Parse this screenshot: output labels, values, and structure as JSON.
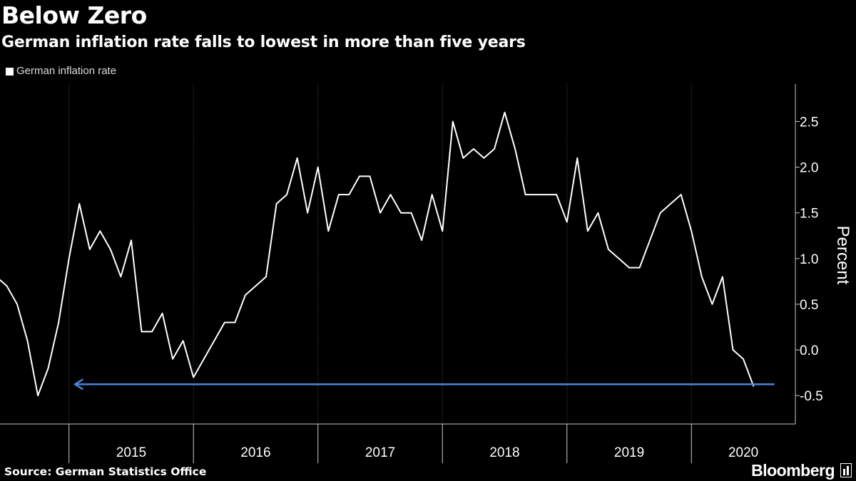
{
  "header": {
    "title": "Below Zero",
    "subtitle": "German inflation rate falls to lowest in more than five years"
  },
  "footer": {
    "source": "Source: German Statistics Office",
    "brand": "Bloomberg"
  },
  "colors": {
    "background": "#000000",
    "series": "#ffffff",
    "arrow": "#4a86d8",
    "grid": "#555555"
  },
  "chart_data": {
    "type": "line",
    "ylabel": "Percent",
    "ylim": [
      -0.8,
      2.85
    ],
    "yticks": [
      -0.5,
      0.0,
      0.5,
      1.0,
      1.5,
      2.0,
      2.5
    ],
    "ytick_labels": [
      "-0.5",
      "0.0",
      "0.5",
      "1.0",
      "1.5",
      "2.0",
      "2.5"
    ],
    "xlim": [
      "2014-06",
      "2020-12"
    ],
    "xticks": [
      "2015",
      "2016",
      "2017",
      "2018",
      "2019",
      "2020"
    ],
    "grid": "vertical dotted at year boundaries",
    "legend": "top-left",
    "series": [
      {
        "name": "German inflation rate",
        "color": "#ffffff",
        "start": "2014-06",
        "frequency": "monthly",
        "values": [
          0.8,
          0.7,
          0.5,
          0.1,
          -0.5,
          -0.2,
          0.3,
          1.0,
          1.6,
          1.1,
          1.3,
          1.1,
          0.8,
          1.2,
          0.2,
          0.2,
          0.4,
          -0.1,
          0.1,
          -0.3,
          -0.1,
          0.1,
          0.3,
          0.3,
          0.6,
          0.7,
          0.8,
          1.6,
          1.7,
          2.1,
          1.5,
          2.0,
          1.3,
          1.7,
          1.7,
          1.9,
          1.9,
          1.5,
          1.7,
          1.5,
          1.5,
          1.2,
          1.7,
          1.3,
          2.5,
          2.1,
          2.2,
          2.1,
          2.2,
          2.6,
          2.2,
          1.7,
          1.7,
          1.7,
          1.7,
          1.4,
          2.1,
          1.3,
          1.5,
          1.1,
          1.0,
          0.9,
          0.9,
          1.2,
          1.5,
          1.6,
          1.7,
          1.3,
          0.8,
          0.5,
          0.8,
          0.0,
          -0.1,
          -0.4
        ]
      }
    ],
    "annotations": [
      {
        "type": "arrow",
        "y": -0.4,
        "x_from": "2020-09",
        "x_to": "2015-02",
        "color": "#4a86d8"
      }
    ]
  }
}
